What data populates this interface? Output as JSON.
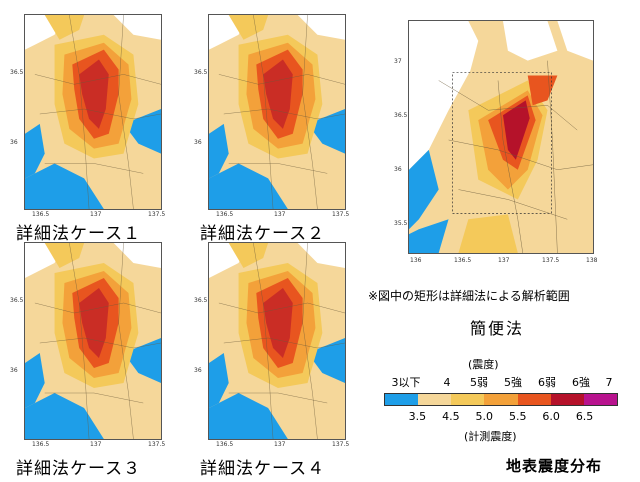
{
  "maps": [
    {
      "caption": "詳細法ケース１",
      "x_ticks": [
        "136.5",
        "137",
        "137.5"
      ],
      "y_ticks": [
        "36.5",
        "36"
      ]
    },
    {
      "caption": "詳細法ケース２",
      "x_ticks": [
        "136.5",
        "137",
        "137.5"
      ],
      "y_ticks": [
        "36.5",
        "36"
      ]
    },
    {
      "caption": "詳細法ケース３",
      "x_ticks": [
        "136.5",
        "137",
        "137.5"
      ],
      "y_ticks": [
        "36.5",
        "36"
      ]
    },
    {
      "caption": "詳細法ケース４",
      "x_ticks": [
        "136.5",
        "137",
        "137.5"
      ],
      "y_ticks": [
        "36.5",
        "36"
      ]
    }
  ],
  "simple_map": {
    "x_ticks": [
      "136",
      "136.5",
      "137",
      "137.5",
      "138"
    ],
    "y_ticks": [
      "37",
      "36.5",
      "36",
      "35.5"
    ],
    "note": "※図中の矩形は詳細法による解析範囲",
    "title": "簡便法"
  },
  "legend": {
    "heading": "(震度)",
    "intensity_labels": [
      "3以下",
      "4",
      "5弱",
      "5強",
      "6弱",
      "6強",
      "7"
    ],
    "instrumental_ticks": [
      "3.5",
      "4.5",
      "5.0",
      "5.5",
      "6.0",
      "6.5"
    ],
    "footer": "(計測震度)",
    "colors": [
      "#1e9ee8",
      "#f5d79a",
      "#f4c95a",
      "#f3a13a",
      "#e8551f",
      "#b5122a",
      "#b8138e"
    ]
  },
  "figure_title": "地表震度分布"
}
